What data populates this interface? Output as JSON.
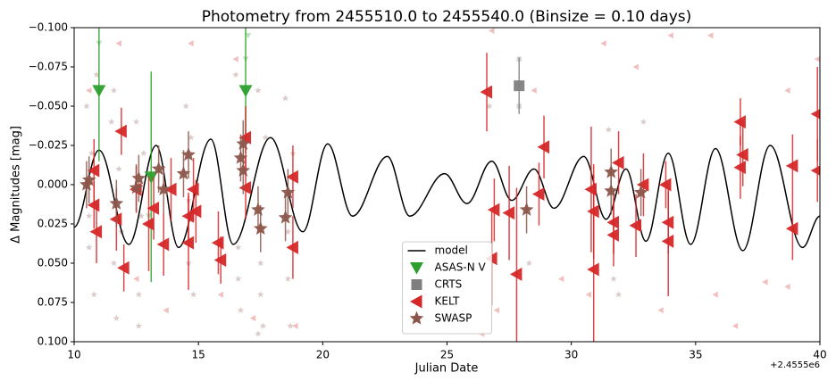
{
  "chart_data": {
    "type": "scatter",
    "title": "Photometry from 2455510.0 to 2455540.0 (Binsize = 0.10 days)",
    "xlabel": "Julian Date",
    "ylabel": "Δ Magnitudes [mag]",
    "offset_text": "+2.4555e6",
    "xlim": [
      10,
      40
    ],
    "ylim": [
      -0.1,
      0.1
    ],
    "invert_y": true,
    "xticks": [
      10,
      15,
      20,
      25,
      30,
      35,
      40
    ],
    "yticks": [
      {
        "value": -0.1,
        "label": "−0.100"
      },
      {
        "value": -0.075,
        "label": "−0.075"
      },
      {
        "value": -0.05,
        "label": "−0.050"
      },
      {
        "value": -0.025,
        "label": "−0.025"
      },
      {
        "value": 0,
        "label": "0.000"
      },
      {
        "value": 0.025,
        "label": "0.025"
      },
      {
        "value": 0.05,
        "label": "0.050"
      },
      {
        "value": 0.075,
        "label": "0.075"
      },
      {
        "value": 0.1,
        "label": "0.100"
      }
    ],
    "legend": "lower center",
    "series": [
      {
        "name": "model",
        "marker": "line",
        "color": "#000000",
        "x": [
          10.0,
          11.0,
          12.2,
          13.3,
          14.2,
          15.5,
          16.4,
          17.9,
          19.2,
          20.2,
          21.2,
          22.6,
          23.5,
          24.9,
          25.8,
          26.8,
          27.6,
          28.5,
          29.3,
          30.5,
          31.4,
          32.2,
          33.0,
          33.9,
          34.8,
          35.8,
          36.9,
          38.0,
          39.3,
          40.0
        ],
        "values": [
          0.027,
          -0.022,
          0.038,
          -0.025,
          0.04,
          -0.029,
          0.038,
          -0.03,
          0.03,
          -0.026,
          0.02,
          -0.018,
          0.02,
          -0.007,
          0.012,
          -0.015,
          0.01,
          -0.01,
          0.015,
          -0.018,
          0.022,
          -0.01,
          0.036,
          -0.02,
          0.038,
          -0.023,
          0.042,
          -0.025,
          0.04,
          0.02
        ]
      },
      {
        "name": "ASAS-N V",
        "marker": "triangle_down",
        "color": "#2ca02c",
        "x": [
          11.0,
          13.1,
          16.9
        ],
        "values": [
          -0.06,
          -0.005,
          -0.06
        ],
        "errors": [
          0.045,
          0.067,
          0.04
        ],
        "raw_x": [
          11.0,
          13.0,
          16.9,
          17.0
        ],
        "raw_values": [
          -0.09,
          0.02,
          -0.08,
          -0.095
        ]
      },
      {
        "name": "CRTS",
        "marker": "square",
        "color": "#7f7f7f",
        "x": [
          27.9
        ],
        "values": [
          -0.063
        ],
        "errors": [
          0.018
        ],
        "raw_x": [
          27.9,
          27.9
        ],
        "raw_values": [
          -0.08,
          -0.05
        ]
      },
      {
        "name": "KELT",
        "marker": "triangle_left",
        "color": "#d62728",
        "x": [
          10.8,
          10.8,
          10.9,
          11.9,
          11.7,
          12.0,
          12.5,
          13.0,
          13.2,
          13.6,
          13.9,
          14.6,
          14.8,
          14.9,
          14.6,
          15.8,
          15.9,
          16.9,
          16.9,
          18.8,
          18.8,
          26.6,
          26.9,
          26.8,
          27.5,
          27.8,
          28.7,
          28.9,
          30.8,
          30.9,
          30.9,
          31.7,
          31.7,
          31.9,
          32.6,
          32.9,
          33.8,
          33.9,
          33.9,
          36.8,
          36.8,
          36.9,
          38.9,
          38.9,
          39.9,
          39.9
        ],
        "values": [
          -0.009,
          0.013,
          0.03,
          -0.034,
          0.022,
          0.053,
          0.003,
          0.025,
          0.015,
          0.038,
          0.003,
          0.02,
          0.003,
          0.017,
          0.037,
          0.037,
          0.048,
          -0.03,
          0.002,
          -0.005,
          0.04,
          -0.059,
          0.016,
          0.047,
          0.018,
          0.057,
          0.006,
          -0.024,
          0.003,
          0.017,
          0.054,
          0.024,
          0.032,
          -0.014,
          0.026,
          0.0,
          0.0,
          0.024,
          0.036,
          -0.04,
          -0.011,
          -0.019,
          -0.012,
          0.028,
          -0.045,
          -0.009
        ],
        "errors": [
          0.02,
          0.015,
          0.02,
          0.015,
          0.02,
          0.015,
          0.015,
          0.03,
          0.02,
          0.02,
          0.02,
          0.015,
          0.02,
          0.02,
          0.03,
          0.02,
          0.015,
          0.02,
          0.02,
          0.02,
          0.02,
          0.025,
          0.02,
          0.03,
          0.03,
          0.055,
          0.02,
          0.02,
          0.04,
          0.03,
          0.06,
          0.02,
          0.02,
          0.02,
          0.02,
          0.02,
          0.015,
          0.02,
          0.035,
          0.015,
          0.02,
          0.02,
          0.02,
          0.02,
          0.03,
          0.02
        ],
        "raw_x": [
          10.6,
          11.8,
          12.5,
          14.7,
          15.9,
          16.5,
          18.9,
          26.8,
          26.4,
          27.0,
          28.5,
          29.6,
          30.7,
          31.3,
          33.6,
          35.6,
          35.8,
          36.6,
          37.8,
          38.7,
          38.7,
          39.9,
          32.6,
          34.0,
          13.7,
          17.2
        ],
        "raw_values": [
          -0.06,
          -0.09,
          0.06,
          -0.09,
          0.07,
          -0.08,
          0.09,
          -0.098,
          0.095,
          0.08,
          -0.06,
          0.06,
          0.07,
          -0.09,
          0.08,
          -0.095,
          0.07,
          0.09,
          0.062,
          -0.06,
          0.065,
          -0.08,
          -0.075,
          -0.095,
          0.08,
          0.085
        ]
      },
      {
        "name": "SWASP",
        "marker": "star",
        "color": "#8c564b",
        "x": [
          10.5,
          10.6,
          11.7,
          12.5,
          12.6,
          13.4,
          13.6,
          14.4,
          14.6,
          16.7,
          16.8,
          16.8,
          17.4,
          17.5,
          18.5,
          18.6,
          28.2,
          31.6,
          31.6,
          32.8
        ],
        "values": [
          0.0,
          -0.003,
          0.012,
          0.002,
          -0.004,
          -0.01,
          0.003,
          -0.007,
          -0.019,
          -0.017,
          -0.026,
          -0.009,
          0.016,
          0.028,
          0.021,
          0.005,
          0.016,
          0.004,
          -0.008,
          0.005
        ],
        "errors": [
          0.015,
          0.015,
          0.015,
          0.015,
          0.015,
          0.015,
          0.015,
          0.015,
          0.015,
          0.015,
          0.015,
          0.015,
          0.015,
          0.015,
          0.015,
          0.015,
          0.015,
          0.015,
          0.015,
          0.015
        ],
        "raw_x": [
          10.5,
          10.6,
          10.7,
          10.8,
          10.6,
          10.9,
          11.5,
          11.6,
          11.7,
          11.8,
          11.9,
          11.6,
          12.5,
          12.6,
          12.7,
          12.8,
          12.6,
          14.5,
          14.6,
          14.7,
          14.8,
          14.6,
          16.5,
          16.6,
          16.7,
          16.9,
          16.6,
          17.4,
          17.5,
          17.6,
          17.7,
          17.5,
          17.4,
          18.5,
          18.6,
          18.7,
          18.8,
          18.6,
          26.7,
          28.3,
          31.5,
          31.7,
          31.9,
          32.9
        ],
        "raw_values": [
          -0.05,
          0.04,
          -0.02,
          0.07,
          0.02,
          -0.07,
          -0.04,
          0.05,
          0.085,
          -0.01,
          0.03,
          -0.06,
          -0.04,
          0.07,
          0.02,
          -0.02,
          0.09,
          -0.05,
          0.05,
          -0.03,
          0.07,
          0.01,
          -0.07,
          0.04,
          0.08,
          -0.03,
          0.06,
          -0.06,
          0.05,
          0.09,
          -0.03,
          0.07,
          0.095,
          -0.055,
          0.06,
          0.09,
          -0.02,
          0.03,
          -0.05,
          0.05,
          -0.035,
          0.06,
          0.07,
          -0.04
        ]
      }
    ]
  }
}
